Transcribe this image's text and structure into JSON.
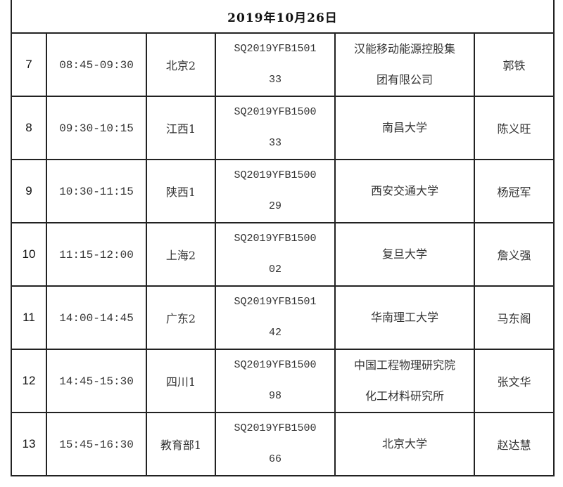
{
  "date_header": "2019年10月26日",
  "rows": [
    {
      "no": "7",
      "time": "08:45-09:30",
      "region": "北京2",
      "code": "SQ2019YFB150133",
      "unit": "汉能移动能源控股集团有限公司",
      "person": "郭铁"
    },
    {
      "no": "8",
      "time": "09:30-10:15",
      "region": "江西1",
      "code": "SQ2019YFB150033",
      "unit": "南昌大学",
      "person": "陈义旺"
    },
    {
      "no": "9",
      "time": "10:30-11:15",
      "region": "陕西1",
      "code": "SQ2019YFB150029",
      "unit": "西安交通大学",
      "person": "杨冠军"
    },
    {
      "no": "10",
      "time": "11:15-12:00",
      "region": "上海2",
      "code": "SQ2019YFB150002",
      "unit": "复旦大学",
      "person": "詹义强"
    },
    {
      "no": "11",
      "time": "14:00-14:45",
      "region": "广东2",
      "code": "SQ2019YFB150142",
      "unit": "华南理工大学",
      "person": "马东阁"
    },
    {
      "no": "12",
      "time": "14:45-15:30",
      "region": "四川1",
      "code": "SQ2019YFB150098",
      "unit": "中国工程物理研究院化工材料研究所",
      "person": "张文华"
    },
    {
      "no": "13",
      "time": "15:45-16:30",
      "region": "教育部1",
      "code": "SQ2019YFB150066",
      "unit": "北京大学",
      "person": "赵达慧"
    }
  ]
}
